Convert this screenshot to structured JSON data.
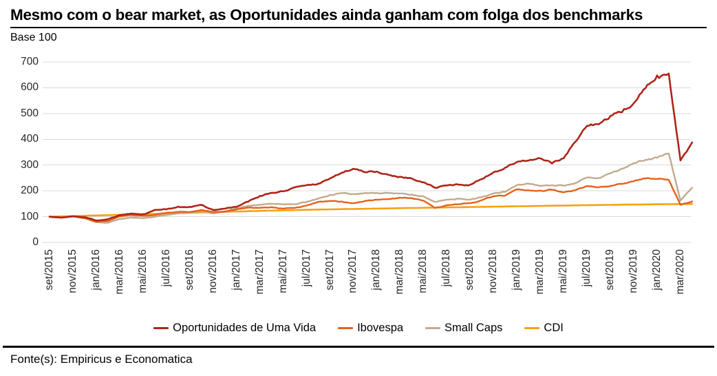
{
  "title": "Mesmo com o bear market, as Oportunidades ainda ganham com folga dos benchmarks",
  "subtitle": "Base 100",
  "source": "Fonte(s): Empiricus e Economatica",
  "colors": {
    "oportunidades": "#AE2418",
    "ibovespa": "#E6601A",
    "small_caps": "#BFAB8D",
    "cdi": "#F4A213",
    "gridline": "#D9D9D9",
    "axis_text": "#262626",
    "rule": "#000000"
  },
  "chart_data": {
    "type": "line",
    "title": "Mesmo com o bear market, as Oportunidades ainda ganham com folga dos benchmarks",
    "subtitle": "Base 100",
    "ylabel": "Base 100",
    "xlabel": "",
    "ylim": [
      0,
      700
    ],
    "y_ticks": [
      0,
      100,
      200,
      300,
      400,
      500,
      600,
      700
    ],
    "grid": "horizontal",
    "legend_position": "bottom",
    "x_start": "set/2015",
    "x_end": "abr/2020",
    "frequency": "monthly",
    "x_tick_labels": [
      "set/2015",
      "nov/2015",
      "jan/2016",
      "mar/2016",
      "mai/2016",
      "jul/2016",
      "set/2016",
      "nov/2016",
      "jan/2017",
      "mar/2017",
      "mai/2017",
      "jul/2017",
      "set/2017",
      "nov/2017",
      "jan/2018",
      "mar/2018",
      "mai/2018",
      "jul/2018",
      "set/2018",
      "nov/2018",
      "jan/2019",
      "mar/2019",
      "mai/2019",
      "jul/2019",
      "set/2019",
      "nov/2019",
      "jan/2020",
      "mar/2020"
    ],
    "series": [
      {
        "name": "Oportunidades de Uma Vida",
        "color": "#AE2418",
        "values": [
          100,
          96,
          101,
          98,
          85,
          90,
          106,
          112,
          109,
          126,
          128,
          139,
          138,
          146,
          126,
          131,
          138,
          158,
          180,
          192,
          198,
          214,
          222,
          228,
          248,
          270,
          286,
          272,
          275,
          262,
          255,
          248,
          233,
          212,
          221,
          224,
          224,
          246,
          272,
          290,
          312,
          318,
          326,
          306,
          326,
          390,
          452,
          458,
          490,
          505,
          540,
          598,
          648,
          655,
          318,
          388
        ]
      },
      {
        "name": "Ibovespa",
        "color": "#E6601A",
        "values": [
          100,
          97,
          101,
          94,
          80,
          83,
          101,
          106,
          103,
          106,
          115,
          118,
          118,
          126,
          118,
          120,
          128,
          135,
          134,
          137,
          131,
          134,
          143,
          157,
          161,
          159,
          152,
          161,
          166,
          168,
          174,
          172,
          162,
          133,
          144,
          148,
          152,
          164,
          179,
          182,
          206,
          202,
          201,
          204,
          194,
          202,
          219,
          214,
          219,
          227,
          237,
          248,
          246,
          242,
          146,
          159
        ]
      },
      {
        "name": "Small Caps",
        "color": "#BFAB8D",
        "values": [
          100,
          97,
          100,
          95,
          78,
          76,
          91,
          97,
          94,
          99,
          106,
          112,
          115,
          121,
          112,
          118,
          132,
          142,
          146,
          150,
          148,
          148,
          157,
          170,
          184,
          192,
          188,
          192,
          192,
          192,
          190,
          186,
          179,
          157,
          166,
          170,
          166,
          175,
          190,
          196,
          222,
          228,
          219,
          222,
          220,
          230,
          252,
          250,
          268,
          286,
          308,
          320,
          328,
          345,
          162,
          212
        ]
      },
      {
        "name": "CDI",
        "color": "#F4A213",
        "values": [
          100,
          101.1,
          102.2,
          103.4,
          104.5,
          105.8,
          107.2,
          108.5,
          109.7,
          111,
          112.3,
          113.7,
          115,
          116.2,
          117.4,
          118.7,
          120,
          121.1,
          122.2,
          123.2,
          124.3,
          125.3,
          126.4,
          127.4,
          128.2,
          129,
          129.7,
          130.5,
          131.3,
          132,
          132.8,
          133.5,
          134.2,
          134.9,
          135.7,
          136.4,
          137.2,
          138,
          138.7,
          139.4,
          140.2,
          140.9,
          141.6,
          142.3,
          143,
          143.7,
          144.4,
          145,
          145.7,
          146.3,
          146.8,
          147.4,
          147.9,
          148.4,
          148.8,
          149.2
        ]
      }
    ]
  }
}
